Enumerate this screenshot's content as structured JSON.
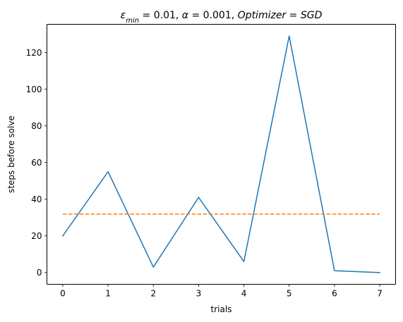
{
  "chart_data": {
    "type": "line",
    "title": {
      "parts": [
        {
          "text": "ε",
          "style": "italic"
        },
        {
          "text": "min",
          "style": "italic-sub"
        },
        {
          "text": " = 0.01, ",
          "style": "normal"
        },
        {
          "text": "α",
          "style": "italic"
        },
        {
          "text": " = 0.001, ",
          "style": "normal"
        },
        {
          "text": "Optimizer",
          "style": "italic"
        },
        {
          "text": " = ",
          "style": "normal"
        },
        {
          "text": "SGD",
          "style": "italic"
        }
      ]
    },
    "xlabel": "trials",
    "ylabel": "steps before solve",
    "xlim": [
      -0.35,
      7.35
    ],
    "ylim": [
      -6.4,
      135.4
    ],
    "x_ticks": [
      0,
      1,
      2,
      3,
      4,
      5,
      6,
      7
    ],
    "y_ticks": [
      0,
      20,
      40,
      60,
      80,
      100,
      120
    ],
    "grid": false,
    "series": [
      {
        "x": [
          0,
          1,
          2,
          3,
          4,
          5,
          6,
          7
        ],
        "values": [
          20,
          55,
          3,
          41,
          6,
          129,
          1,
          0
        ],
        "color": "#1f77b4",
        "line_style": "solid"
      },
      {
        "x": [
          0,
          7
        ],
        "values": [
          31.9,
          31.9
        ],
        "color": "#ff7f0e",
        "line_style": "dashed"
      }
    ]
  }
}
